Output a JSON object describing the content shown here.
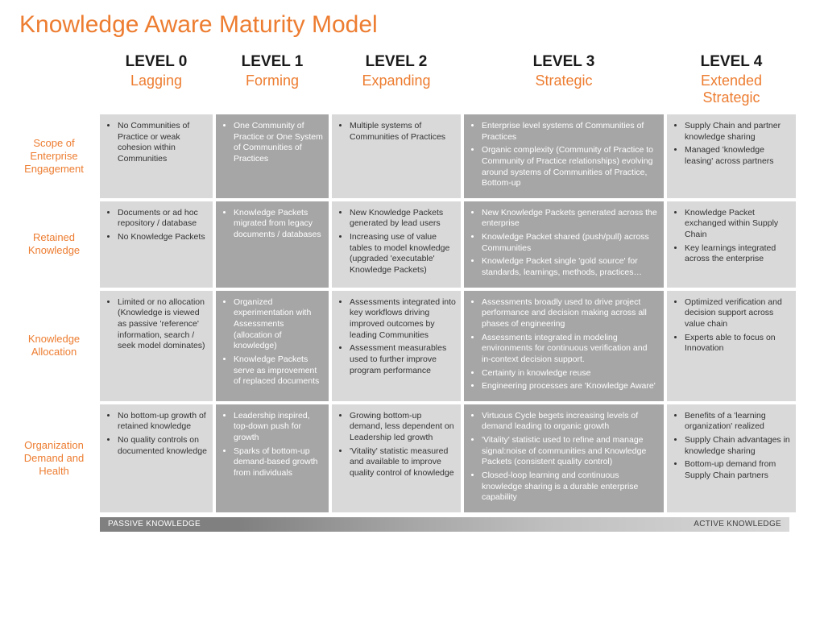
{
  "title": "Knowledge Aware Maturity Model",
  "colors": {
    "accent": "#ed7d31",
    "light_cell_bg": "#d9d9d9",
    "dark_cell_bg": "#a6a6a6",
    "light_text": "#333333",
    "dark_text": "#ffffff",
    "background": "#ffffff",
    "spectrum_from": "#808080",
    "spectrum_to": "#d9d9d9"
  },
  "levels": [
    {
      "num": "LEVEL 0",
      "name": "Lagging"
    },
    {
      "num": "LEVEL 1",
      "name": "Forming"
    },
    {
      "num": "LEVEL 2",
      "name": "Expanding"
    },
    {
      "num": "LEVEL 3",
      "name": "Strategic"
    },
    {
      "num": "LEVEL 4",
      "name": "Extended Strategic"
    }
  ],
  "row_labels": [
    "Scope of Enterprise Engagement",
    "Retained Knowledge",
    "Knowledge Allocation",
    "Organization Demand and Health"
  ],
  "rows": [
    [
      {
        "shade": "light",
        "items": [
          "No Communities of Practice or weak cohesion within Communities"
        ]
      },
      {
        "shade": "dark",
        "items": [
          "One Community of Practice or One System of Communities of Practices"
        ]
      },
      {
        "shade": "light",
        "items": [
          "Multiple systems of Communities of Practices"
        ]
      },
      {
        "shade": "dark",
        "items": [
          "Enterprise level systems of Communities of Practices",
          "Organic complexity (Community of Practice to Community of Practice relationships) evolving around systems of Communities of Practice, Bottom-up"
        ]
      },
      {
        "shade": "light",
        "items": [
          "Supply Chain and partner knowledge sharing",
          "Managed 'knowledge leasing' across partners"
        ]
      }
    ],
    [
      {
        "shade": "light",
        "items": [
          "Documents or ad hoc repository / database",
          "No Knowledge Packets"
        ]
      },
      {
        "shade": "dark",
        "items": [
          "Knowledge Packets migrated from legacy documents / databases"
        ]
      },
      {
        "shade": "light",
        "items": [
          "New Knowledge Packets generated by lead users",
          "Increasing use of value tables to model knowledge (upgraded 'executable' Knowledge Packets)"
        ]
      },
      {
        "shade": "dark",
        "items": [
          "New Knowledge Packets generated across the enterprise",
          "Knowledge Packet shared (push/pull) across Communities",
          "Knowledge Packet single 'gold source' for standards, learnings, methods, practices…"
        ]
      },
      {
        "shade": "light",
        "items": [
          "Knowledge Packet exchanged within Supply Chain",
          "Key learnings integrated across the enterprise"
        ]
      }
    ],
    [
      {
        "shade": "light",
        "items": [
          "Limited or no allocation (Knowledge is viewed as passive 'reference' information, search / seek model dominates)"
        ]
      },
      {
        "shade": "dark",
        "items": [
          "Organized experimentation with Assessments (allocation of knowledge)",
          "Knowledge Packets serve as improvement of replaced documents"
        ]
      },
      {
        "shade": "light",
        "items": [
          "Assessments integrated into key workflows driving improved outcomes by leading Communities",
          "Assessment measurables used to further improve program performance"
        ]
      },
      {
        "shade": "dark",
        "items": [
          "Assessments broadly used to drive project performance and decision making across all phases of engineering",
          "Assessments integrated in modeling environments for continuous verification and in-context decision support.",
          "Certainty in knowledge reuse",
          "Engineering processes are 'Knowledge Aware'"
        ]
      },
      {
        "shade": "light",
        "items": [
          "Optimized verification and decision support across value chain",
          "Experts able to focus on Innovation"
        ]
      }
    ],
    [
      {
        "shade": "light",
        "items": [
          "No bottom-up growth of retained knowledge",
          "No quality controls on documented knowledge"
        ]
      },
      {
        "shade": "dark",
        "items": [
          "Leadership inspired, top-down push for growth",
          "Sparks of bottom-up demand-based growth from individuals"
        ]
      },
      {
        "shade": "light",
        "items": [
          "Growing bottom-up demand, less dependent on Leadership led growth",
          "'Vitality' statistic measured and available to improve quality control of knowledge"
        ]
      },
      {
        "shade": "dark",
        "items": [
          "Virtuous Cycle begets increasing levels of demand leading to organic growth",
          "'Vitality' statistic used to refine and manage signal:noise of communities and Knowledge Packets (consistent quality control)",
          "Closed-loop learning and continuous knowledge sharing is a durable enterprise capability"
        ]
      },
      {
        "shade": "light",
        "items": [
          "Benefits of a 'learning organization' realized",
          "Supply Chain advantages in knowledge sharing",
          "Bottom-up demand from Supply Chain partners"
        ]
      }
    ]
  ],
  "spectrum": {
    "left": "PASSIVE KNOWLEDGE",
    "right": "ACTIVE KNOWLEDGE"
  }
}
